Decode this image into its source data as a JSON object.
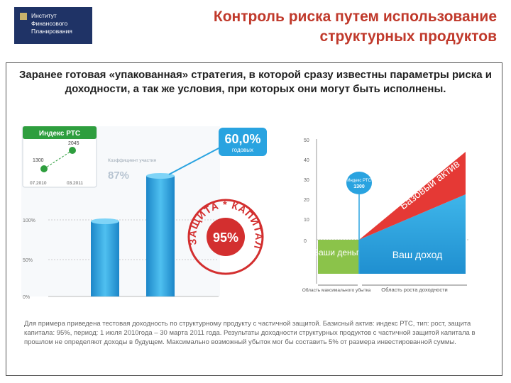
{
  "logo": {
    "text": "Институт\nФинансового\nПланирования"
  },
  "title": "Контроль риска путем использование структурных продуктов",
  "intro": "Заранее готовая «упакованная» стратегия, в которой сразу известны параметры риска и доходности, а так же условия, при которых они могут быть исполнены.",
  "left_panel": {
    "index_card": {
      "title": "Индекс РТС",
      "points": [
        {
          "date": "07.2010",
          "value": "1300"
        },
        {
          "date": "03.2011",
          "value": "2045"
        }
      ]
    },
    "badge": {
      "value": "60,0%",
      "label": "годовых"
    },
    "participation": {
      "label": "Коэффициент участия",
      "value": "87%"
    },
    "seal": {
      "text": "ЗАЩИТА * КАПИТАЛА *",
      "value": "95%"
    },
    "y_ticks": [
      "100%",
      "50%",
      "0%"
    ]
  },
  "right_chart": {
    "y_ticks": [
      "50",
      "40",
      "30",
      "20",
      "10",
      "0"
    ],
    "ellipse": {
      "line1": "Индекс РТС",
      "line2": "1300"
    },
    "base_asset_label": "Базовый актив",
    "your_money_label": "Ваши деньги",
    "your_income_label": "Ваш доход",
    "loss_area_label": "Область максимального убытка",
    "growth_area_label": "Область роста доходности"
  },
  "note": "Для примера приведена тестовая доходность по структурному продукту с частичной защитой. Базисный актив: индекс РТС, тип: рост, защита капитала: 95%, период: 1 июля 2010года – 30 марта 2011 года. Результаты доходности структурных продуктов с частичной защитой капитала в прошлом не определяют доходы в будущем. Максимально возможный убыток мог бы составить 5% от размера инвестированной суммы.",
  "colors": {
    "title": "#c0392b",
    "logo_bg": "#1f3366",
    "blue": "#29a3e0",
    "red": "#e53935",
    "green": "#7cb342"
  }
}
